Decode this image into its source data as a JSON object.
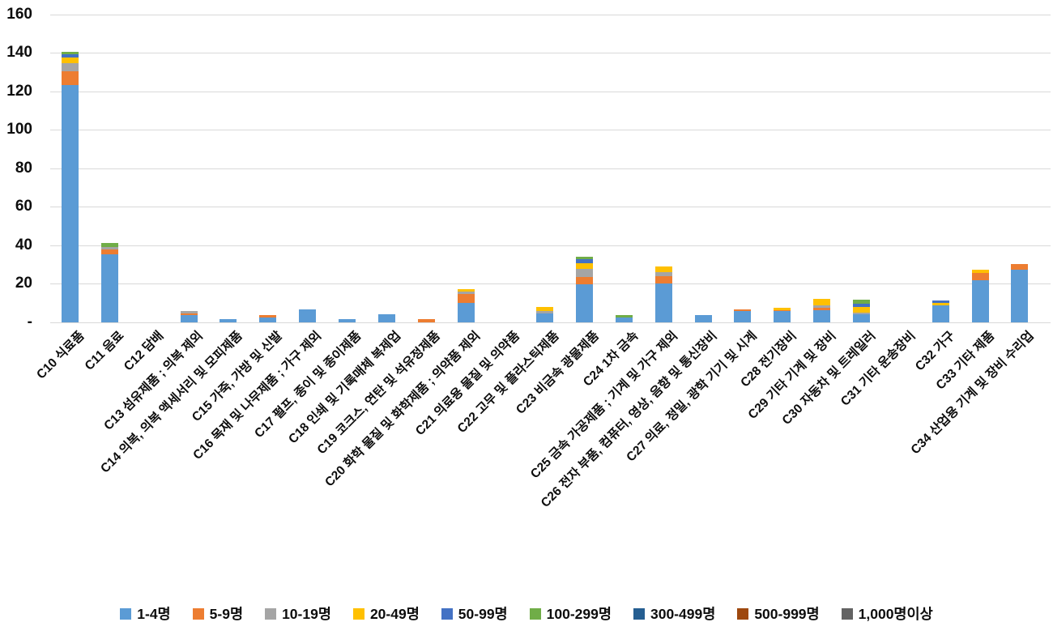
{
  "page": {
    "background": "#FFFFFF"
  },
  "chart_data": {
    "type": "bar",
    "stacked": true,
    "title": "",
    "xlabel": "",
    "ylabel": "",
    "grid": "horizontal",
    "gridline_color": "#D9D9D9",
    "y_axis": {
      "min": 0,
      "max": 160,
      "step": 20,
      "tick_labels": [
        "-",
        "20",
        "40",
        "60",
        "80",
        "100",
        "120",
        "140",
        "160"
      ]
    },
    "legend": {
      "position": "bottom"
    },
    "categories": [
      "C10 식료품",
      "C11 음료",
      "C12 담배",
      "C13 섬유제품 ; 의복 제외",
      "C14 의복, 의복 액세서리 및 모피제품",
      "C15 가죽, 가방 및 신발",
      "C16 목재 및 나무제품 ; 가구 제외",
      "C17 펄프, 종이 및 종이제품",
      "C18 인쇄 및 기록매체 복제업",
      "C19 코크스, 연탄 및 석유정제품",
      "C20 화학 물질 및 화학제품 ; 의약품 제외",
      "C21 의료용 물질 및 의약품",
      "C22 고무 및 플라스틱제품",
      "C23 비금속 광물제품",
      "C24 1차 금속",
      "C25 금속 가공제품 ; 기계 및 가구 제외",
      "C26 전자 부품, 컴퓨터, 영상, 음향 및 통신장비",
      "C27 의료, 정밀, 광학 기기 및 시계",
      "C28 전기장비",
      "C29 기타 기계 및 장비",
      "C30 자동차 및 트레일러",
      "C31 기타 운송장비",
      "C32 가구",
      "C33 기타 제품",
      "C34 산업용 기계 및 장비 수리업"
    ],
    "series": [
      {
        "name": "1-4명",
        "color": "#5B9BD5",
        "values": [
          123,
          35,
          0,
          3.5,
          1.5,
          2.5,
          6.5,
          1.5,
          4,
          0,
          10,
          0,
          4.5,
          19.5,
          2.5,
          20,
          3.5,
          5.5,
          5.5,
          6,
          4,
          0,
          8.5,
          21.5,
          27
        ]
      },
      {
        "name": "5-9명",
        "color": "#ED7D31",
        "values": [
          7.5,
          2.5,
          0,
          1,
          0,
          1,
          0,
          0,
          0,
          1.5,
          4.5,
          0,
          0,
          4,
          0,
          4,
          0,
          1,
          0.75,
          1.5,
          0,
          0,
          0,
          4,
          3
        ]
      },
      {
        "name": "10-19명",
        "color": "#A5A5A5",
        "values": [
          4,
          1.5,
          0,
          1,
          0,
          0,
          0,
          0,
          0,
          0,
          1.25,
          0,
          1,
          4,
          0,
          2,
          0,
          0,
          0,
          1,
          1,
          0,
          0,
          0,
          0
        ]
      },
      {
        "name": "20-49명",
        "color": "#FFC000",
        "values": [
          3,
          0,
          0,
          0,
          0,
          0,
          0,
          0,
          0,
          0,
          1.25,
          0,
          2.5,
          3,
          0,
          3,
          0,
          0,
          1.25,
          3.5,
          3,
          0,
          1.5,
          1.5,
          0
        ]
      },
      {
        "name": "50-99명",
        "color": "#4472C4",
        "values": [
          1.5,
          0,
          0,
          0,
          0,
          0,
          0,
          0,
          0,
          0,
          0,
          0,
          0,
          2,
          0,
          0,
          0,
          0,
          0,
          0,
          1.5,
          0,
          1,
          0,
          0
        ]
      },
      {
        "name": "100-299명",
        "color": "#70AD47",
        "values": [
          1.5,
          2,
          0,
          0,
          0,
          0,
          0,
          0,
          0,
          0,
          0,
          0,
          0,
          1.25,
          1,
          0,
          0,
          0,
          0,
          0,
          2,
          0,
          0,
          0,
          0
        ]
      },
      {
        "name": "300-499명",
        "color": "#255E91",
        "values": [
          0,
          0,
          0,
          0,
          0,
          0,
          0,
          0,
          0,
          0,
          0,
          0,
          0,
          0,
          0,
          0,
          0,
          0,
          0,
          0,
          0,
          0,
          0,
          0,
          0
        ]
      },
      {
        "name": "500-999명",
        "color": "#9E480E",
        "values": [
          0,
          0,
          0,
          0,
          0,
          0,
          0,
          0,
          0,
          0,
          0,
          0,
          0,
          0,
          0,
          0,
          0,
          0,
          0,
          0,
          0,
          0,
          0,
          0,
          0
        ]
      },
      {
        "name": "1,000명이상",
        "color": "#636363",
        "values": [
          0,
          0,
          0,
          0,
          0,
          0,
          0,
          0,
          0,
          0,
          0,
          0,
          0,
          0,
          0,
          0,
          0,
          0,
          0,
          0,
          0,
          0,
          0,
          0,
          0
        ]
      }
    ]
  }
}
